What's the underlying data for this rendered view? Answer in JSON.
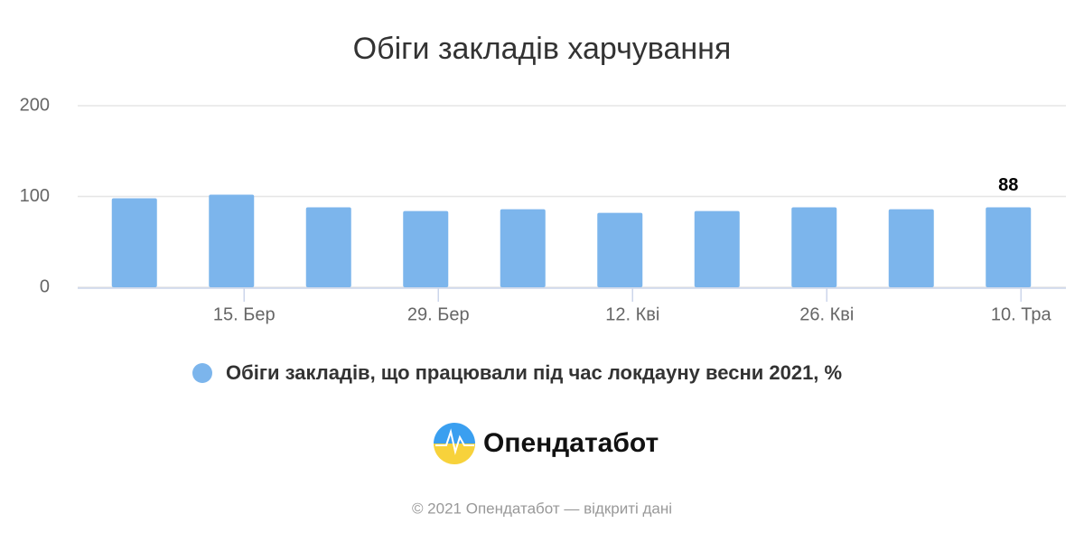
{
  "chart_data": {
    "type": "bar",
    "title": "Обіги закладів харчування",
    "categories": [
      null,
      "15. Бер",
      null,
      "29. Бер",
      null,
      "12. Кві",
      null,
      "26. Кві",
      null,
      "10. Тра"
    ],
    "series": [
      {
        "name": "Обіги закладів, що працювали під час локдауну весни 2021, %",
        "color": "#7cb5ec",
        "values": [
          98,
          102,
          88,
          84,
          86,
          82,
          84,
          88,
          86,
          88
        ],
        "value_labels": [
          null,
          null,
          null,
          null,
          null,
          null,
          null,
          null,
          null,
          "88"
        ]
      }
    ],
    "ylim": [
      0,
      200
    ],
    "yticks": [
      0,
      100,
      200
    ],
    "grid": true
  },
  "logo": {
    "text": "Опендатабот"
  },
  "footer": "© 2021 Опендатабот — відкриті дані"
}
